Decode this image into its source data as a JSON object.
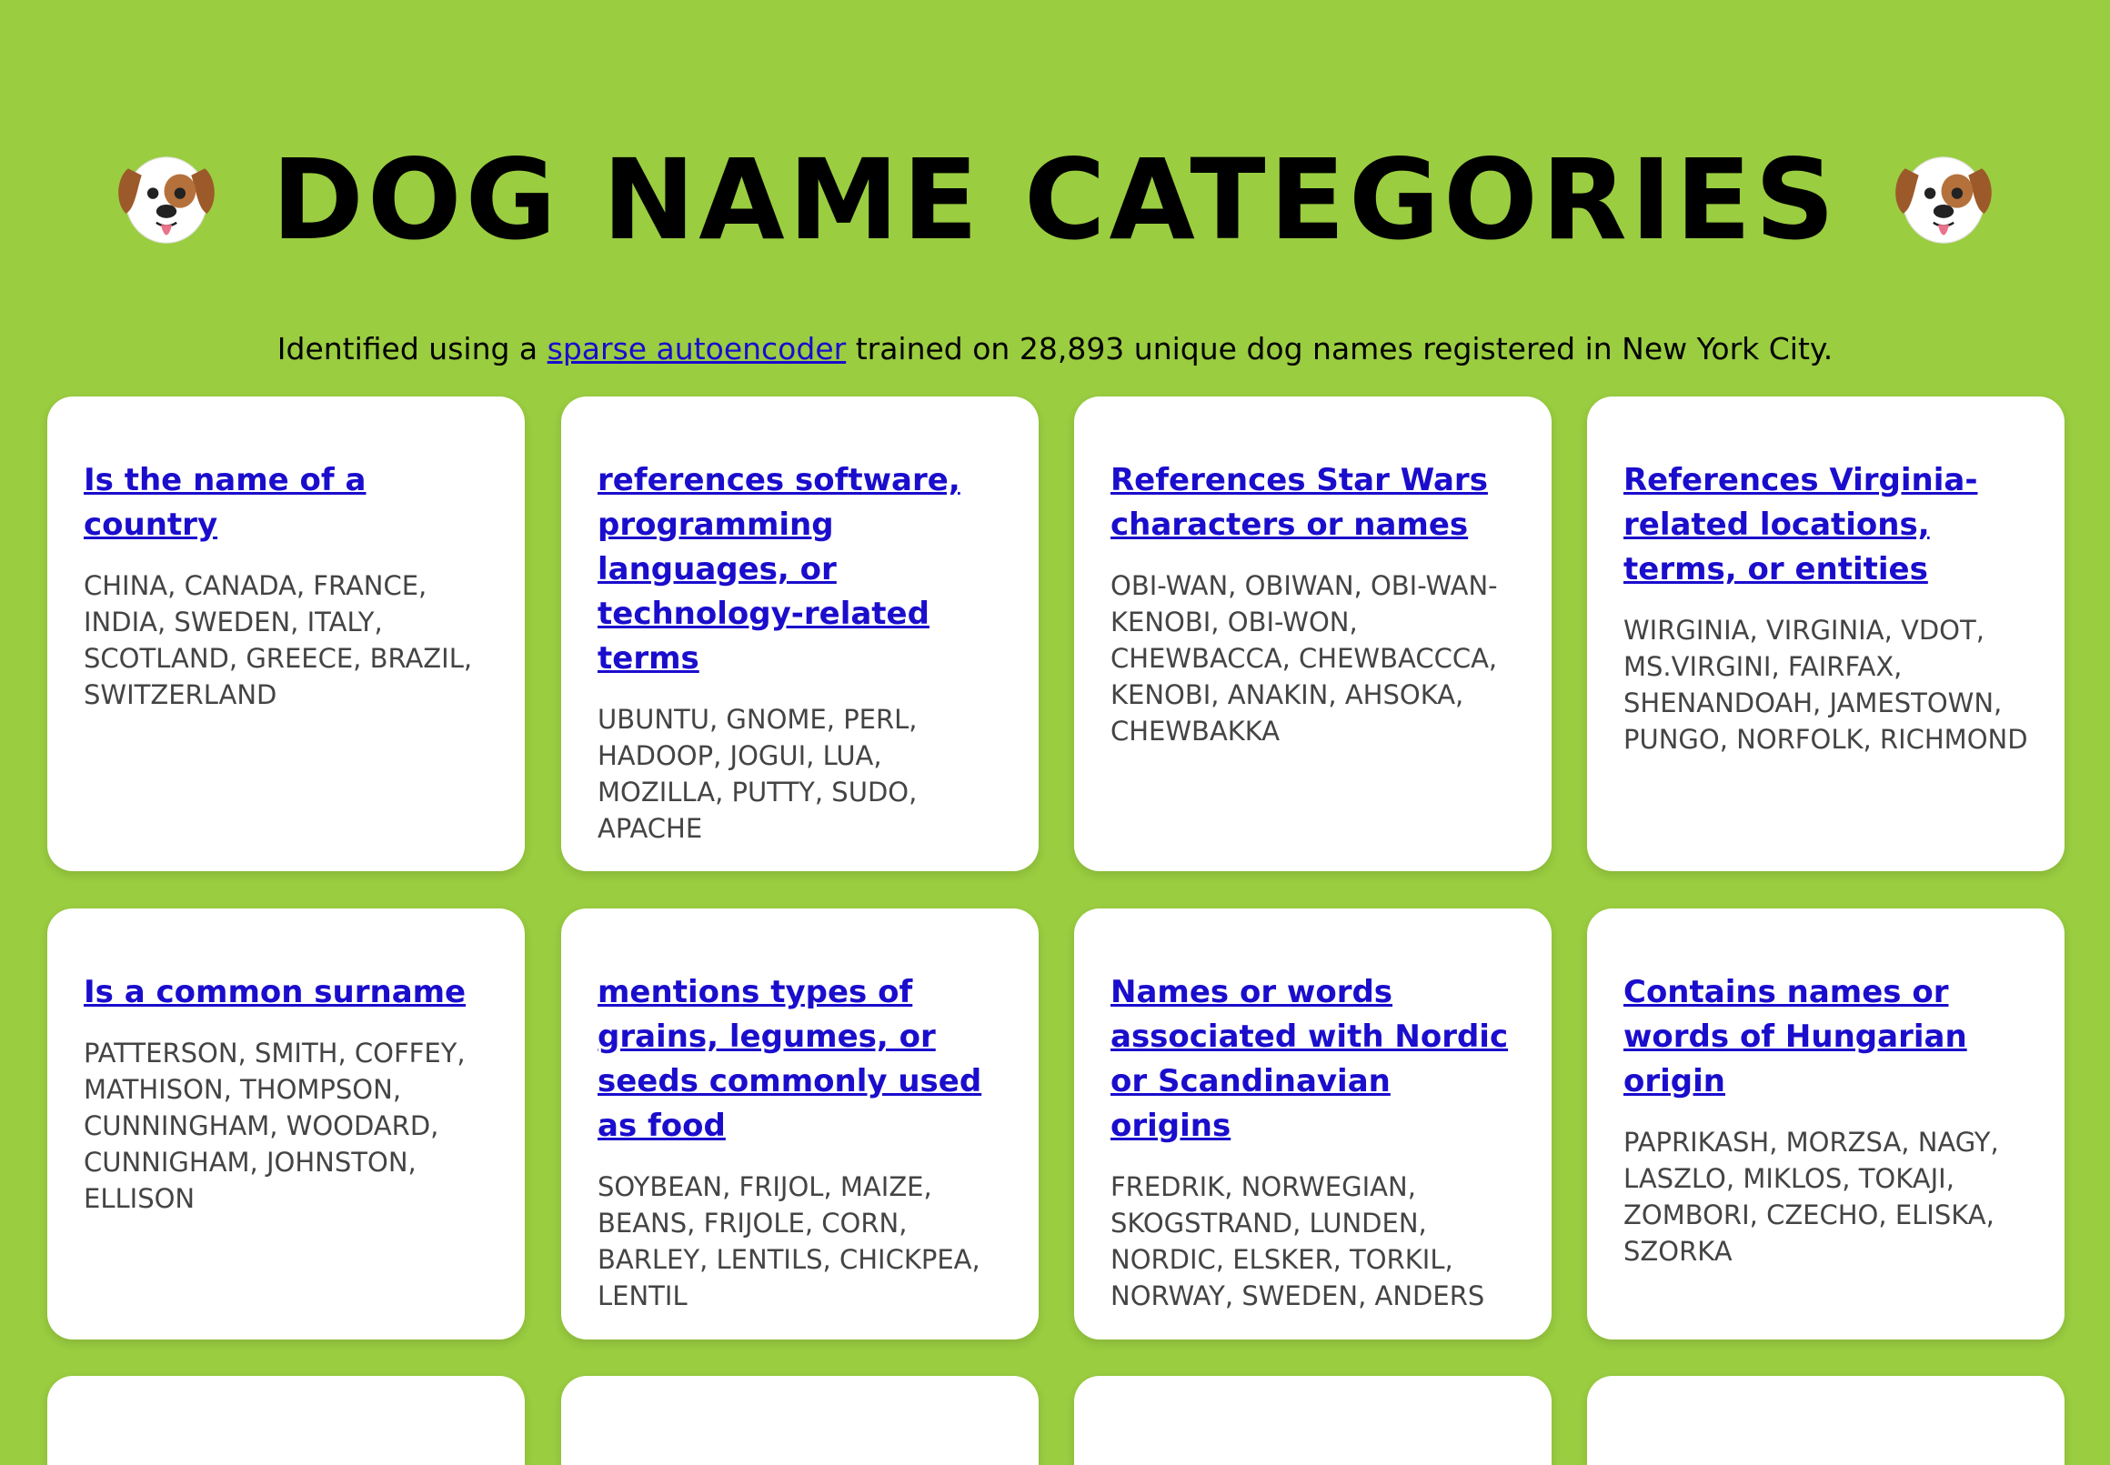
{
  "page": {
    "title": "DOG NAME CATEGORIES",
    "title_icon": "dog-face-icon",
    "subtitle_before": "Identified using a ",
    "subtitle_link": "sparse autoencoder",
    "subtitle_after": " trained on 28,893 unique dog names registered in New York City."
  },
  "colors": {
    "background": "#9acd40",
    "card": "#ffffff",
    "link": "#1a0dcc",
    "names": "#444444"
  },
  "categories": [
    {
      "title": "Is the name of a country",
      "names": "CHINA, CANADA, FRANCE, INDIA, SWEDEN, ITALY, SCOTLAND, GREECE, BRAZIL, SWITZERLAND"
    },
    {
      "title": "references software, programming languages, or technology-related terms",
      "names": "UBUNTU, GNOME, PERL, HADOOP, JOGUI, LUA, MOZILLA, PUTTY, SUDO, APACHE"
    },
    {
      "title": "References Star Wars characters or names",
      "names": "OBI-WAN, OBIWAN, OBI-WAN-KENOBI, OBI-WON, CHEWBACCA, CHEWBACCCA, KENOBI, ANAKIN, AHSOKA, CHEWBAKKA"
    },
    {
      "title": "References Virginia-related locations, terms, or entities",
      "names": "WIRGINIA, VIRGINIA, VDOT, MS.VIRGINI, FAIRFAX, SHENANDOAH, JAMESTOWN, PUNGO, NORFOLK, RICHMOND"
    },
    {
      "title": "Is a common surname",
      "names": "PATTERSON, SMITH, COFFEY, MATHISON, THOMPSON, CUNNINGHAM, WOODARD, CUNNIGHAM, JOHNSTON, ELLISON"
    },
    {
      "title": "mentions types of grains, legumes, or seeds commonly used as food",
      "names": "SOYBEAN, FRIJOL, MAIZE, BEANS, FRIJOLE, CORN, BARLEY, LENTILS, CHICKPEA, LENTIL"
    },
    {
      "title": "Names or words associated with Nordic or Scandinavian origins",
      "names": "FREDRIK, NORWEGIAN, SKOGSTRAND, LUNDEN, NORDIC, ELSKER, TORKIL, NORWAY, SWEDEN, ANDERS"
    },
    {
      "title": "Contains names or words of Hungarian origin",
      "names": "PAPRIKASH, MORZSA, NAGY, LASZLO, MIKLOS, TOKAJI, ZOMBORI, CZECHO, ELISKA, SZORKA"
    },
    {
      "title": "",
      "names": ""
    },
    {
      "title": "",
      "names": ""
    },
    {
      "title": "",
      "names": ""
    },
    {
      "title": "",
      "names": ""
    }
  ]
}
